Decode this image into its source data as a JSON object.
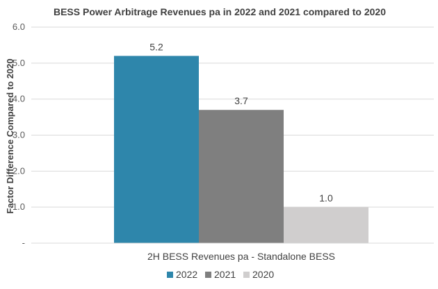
{
  "chart_data": {
    "type": "bar",
    "title": "BESS Power Arbitrage Revenues pa in 2022 and 2021 compared to 2020",
    "xlabel": "2H BESS Revenues pa - Standalone BESS",
    "ylabel": "Factor Difference Compared to 2020",
    "ylim": [
      0,
      6
    ],
    "yticks": [
      "-",
      "1.0",
      "2.0",
      "3.0",
      "4.0",
      "5.0",
      "6.0"
    ],
    "ytick_values": [
      0,
      1,
      2,
      3,
      4,
      5,
      6
    ],
    "categories": [
      "2H BESS Revenues pa - Standalone BESS"
    ],
    "series": [
      {
        "name": "2022",
        "values": [
          5.2
        ],
        "label": "5.2",
        "color": "#2E86AB"
      },
      {
        "name": "2021",
        "values": [
          3.7
        ],
        "label": "3.7",
        "color": "#7F7F7F"
      },
      {
        "name": "2020",
        "values": [
          1.0
        ],
        "label": "1.0",
        "color": "#D0CECE"
      }
    ],
    "grid": true,
    "legend_position": "bottom"
  }
}
